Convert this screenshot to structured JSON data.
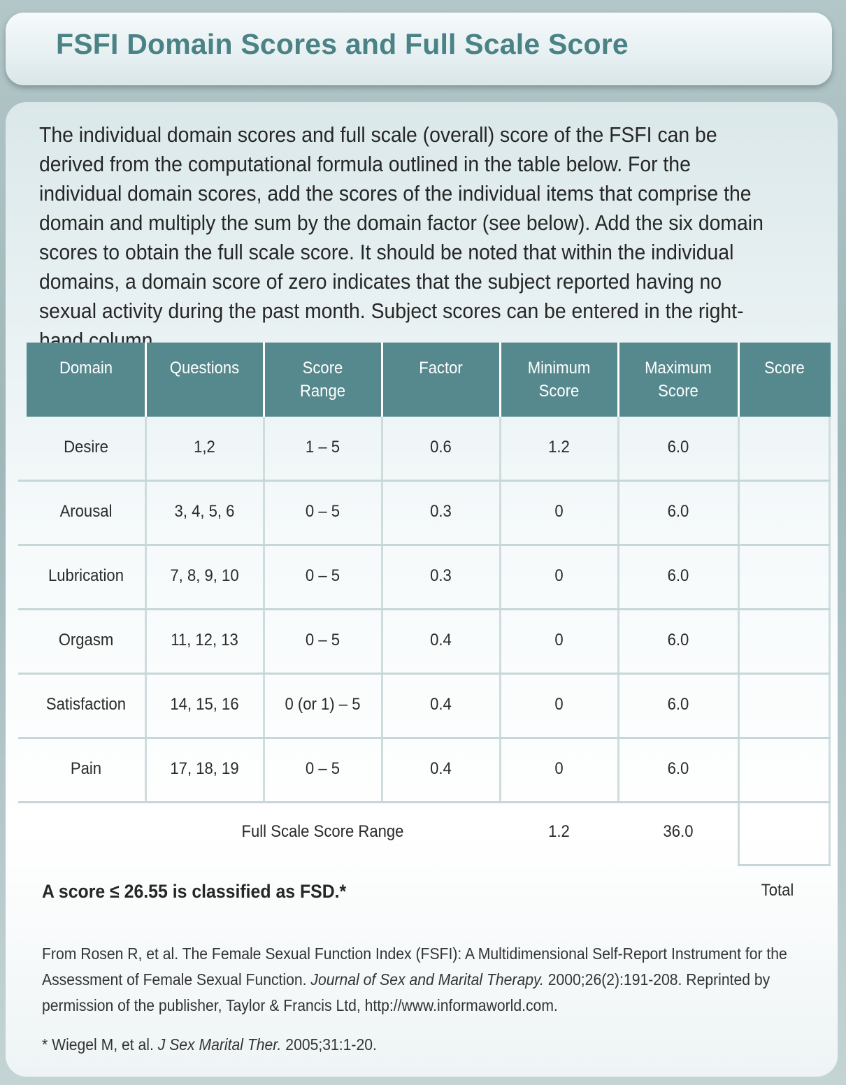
{
  "header": {
    "title": "FSFI Domain Scores and Full Scale Score"
  },
  "intro": "The individual domain scores and full scale (overall) score of the FSFI can be derived from the computational formula outlined in the table below. For the individual domain scores, add the scores of the individual items that comprise the domain and multiply the sum by the domain factor (see below). Add the six domain scores to obtain the full scale score. It should be noted that within the individual domains, a domain score of zero indicates that the subject reported having no sexual activity during the past month. Subject scores can be entered in the right-hand column.",
  "table": {
    "headers": [
      [
        "Domain"
      ],
      [
        "Questions"
      ],
      [
        "Score",
        "Range"
      ],
      [
        "Factor"
      ],
      [
        "Minimum",
        "Score"
      ],
      [
        "Maximum",
        "Score"
      ],
      [
        "Score"
      ]
    ],
    "rows": [
      {
        "domain": "Desire",
        "questions": "1,2",
        "range": "1 – 5",
        "factor": "0.6",
        "min": "1.2",
        "max": "6.0",
        "score": ""
      },
      {
        "domain": "Arousal",
        "questions": "3, 4, 5, 6",
        "range": "0 – 5",
        "factor": "0.3",
        "min": "0",
        "max": "6.0",
        "score": ""
      },
      {
        "domain": "Lubrication",
        "questions": "7, 8, 9, 10",
        "range": "0 – 5",
        "factor": "0.3",
        "min": "0",
        "max": "6.0",
        "score": ""
      },
      {
        "domain": "Orgasm",
        "questions": "11, 12, 13",
        "range": "0 – 5",
        "factor": "0.4",
        "min": "0",
        "max": "6.0",
        "score": ""
      },
      {
        "domain": "Satisfaction",
        "questions": "14, 15, 16",
        "range": "0 (or 1) – 5",
        "factor": "0.4",
        "min": "0",
        "max": "6.0",
        "score": ""
      },
      {
        "domain": "Pain",
        "questions": "17, 18, 19",
        "range": "0 – 5",
        "factor": "0.4",
        "min": "0",
        "max": "6.0",
        "score": ""
      }
    ],
    "summary": {
      "label": "Full Scale Score Range",
      "min": "1.2",
      "max": "36.0",
      "total_label": "Total"
    }
  },
  "classification": "A score ≤ 26.55 is classified as FSD.*",
  "citation": {
    "part1": "From Rosen R, et al. The Female Sexual Function Index (FSFI): A Multidimensional Self-Report Instrument for the Assessment of Female Sexual Function. ",
    "journal": "Journal of Sex and Marital Therapy.",
    "part2": " 2000;26(2):191-208. Reprinted by permission of the publisher, Taylor & Francis Ltd, http://www.informaworld.com."
  },
  "footnote": {
    "part1": "* Wiegel M, et al. ",
    "journal": "J Sex Marital Ther.",
    "part2": " 2005;31:1-20."
  }
}
